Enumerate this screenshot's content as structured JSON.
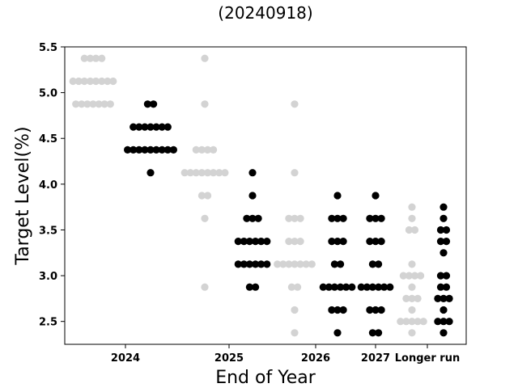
{
  "chart_data": {
    "type": "scatter",
    "title": "",
    "subtitle": "(20240918)",
    "xlabel": "End of Year",
    "ylabel": "Target Level(%)",
    "categories": [
      "2024",
      "2025",
      "2026",
      "2027",
      "Longer run"
    ],
    "ylim": [
      2.25,
      5.5
    ],
    "yticks": [
      "2.5",
      "3.0",
      "3.5",
      "4.0",
      "4.5",
      "5.0",
      "5.5"
    ],
    "grid": false,
    "legend": "none",
    "colors": {
      "older": "#d3d3d3",
      "current": "#000000"
    },
    "series": [
      {
        "category": "2024",
        "style": "older",
        "points": [
          {
            "y": 5.375,
            "count": 4
          },
          {
            "y": 5.125,
            "count": 8
          },
          {
            "y": 4.875,
            "count": 7
          }
        ]
      },
      {
        "category": "2024",
        "style": "current",
        "points": [
          {
            "y": 4.875,
            "count": 2
          },
          {
            "y": 4.625,
            "count": 7
          },
          {
            "y": 4.375,
            "count": 9
          },
          {
            "y": 4.125,
            "count": 1
          }
        ]
      },
      {
        "category": "2025",
        "style": "older",
        "points": [
          {
            "y": 5.375,
            "count": 1
          },
          {
            "y": 4.875,
            "count": 1
          },
          {
            "y": 4.375,
            "count": 4
          },
          {
            "y": 4.125,
            "count": 8
          },
          {
            "y": 3.875,
            "count": 2
          },
          {
            "y": 3.625,
            "count": 1
          },
          {
            "y": 2.875,
            "count": 1
          }
        ]
      },
      {
        "category": "2025",
        "style": "current",
        "points": [
          {
            "y": 4.125,
            "count": 1
          },
          {
            "y": 3.875,
            "count": 1
          },
          {
            "y": 3.625,
            "count": 3
          },
          {
            "y": 3.375,
            "count": 6
          },
          {
            "y": 3.125,
            "count": 6
          },
          {
            "y": 2.875,
            "count": 2
          }
        ]
      },
      {
        "category": "2026",
        "style": "older",
        "points": [
          {
            "y": 4.875,
            "count": 1
          },
          {
            "y": 4.125,
            "count": 1
          },
          {
            "y": 3.625,
            "count": 3
          },
          {
            "y": 3.375,
            "count": 3
          },
          {
            "y": 3.125,
            "count": 7
          },
          {
            "y": 2.875,
            "count": 2
          },
          {
            "y": 2.625,
            "count": 1
          },
          {
            "y": 2.375,
            "count": 1
          }
        ]
      },
      {
        "category": "2026",
        "style": "current",
        "points": [
          {
            "y": 3.875,
            "count": 1
          },
          {
            "y": 3.625,
            "count": 3
          },
          {
            "y": 3.375,
            "count": 3
          },
          {
            "y": 3.125,
            "count": 2
          },
          {
            "y": 2.875,
            "count": 6
          },
          {
            "y": 2.625,
            "count": 3
          },
          {
            "y": 2.375,
            "count": 1
          }
        ]
      },
      {
        "category": "2027",
        "style": "current",
        "points": [
          {
            "y": 3.875,
            "count": 1
          },
          {
            "y": 3.625,
            "count": 3
          },
          {
            "y": 3.375,
            "count": 3
          },
          {
            "y": 3.125,
            "count": 2
          },
          {
            "y": 2.875,
            "count": 6
          },
          {
            "y": 2.625,
            "count": 3
          },
          {
            "y": 2.375,
            "count": 2
          }
        ]
      },
      {
        "category": "Longer run",
        "style": "older",
        "points": [
          {
            "y": 3.75,
            "count": 1
          },
          {
            "y": 3.625,
            "count": 1
          },
          {
            "y": 3.5,
            "count": 2
          },
          {
            "y": 3.125,
            "count": 1
          },
          {
            "y": 3.0,
            "count": 4
          },
          {
            "y": 2.875,
            "count": 1
          },
          {
            "y": 2.75,
            "count": 3
          },
          {
            "y": 2.625,
            "count": 1
          },
          {
            "y": 2.5,
            "count": 5
          },
          {
            "y": 2.375,
            "count": 1
          }
        ]
      },
      {
        "category": "Longer run",
        "style": "current",
        "points": [
          {
            "y": 3.75,
            "count": 1
          },
          {
            "y": 3.625,
            "count": 1
          },
          {
            "y": 3.5,
            "count": 2
          },
          {
            "y": 3.375,
            "count": 2
          },
          {
            "y": 3.25,
            "count": 1
          },
          {
            "y": 3.0,
            "count": 2
          },
          {
            "y": 2.875,
            "count": 2
          },
          {
            "y": 2.75,
            "count": 3
          },
          {
            "y": 2.625,
            "count": 1
          },
          {
            "y": 2.5,
            "count": 3
          },
          {
            "y": 2.375,
            "count": 1
          }
        ]
      }
    ]
  }
}
